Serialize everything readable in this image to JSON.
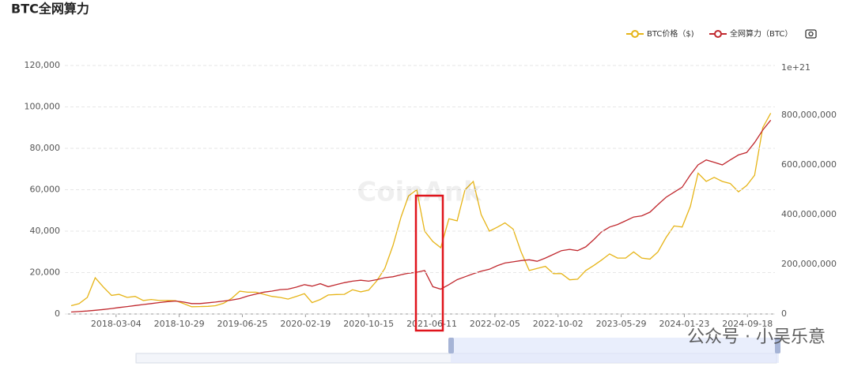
{
  "chart_data": {
    "type": "line",
    "title": "BTC全网算力",
    "watermark": "CoinAnk",
    "overlay_text": "公众号 · 小吴乐意",
    "y2_scale_label": "1e+21",
    "legend": "top-right",
    "grid": true,
    "x": [
      "2017-09-15",
      "2017-10-15",
      "2017-11-15",
      "2017-12-15",
      "2018-01-15",
      "2018-02-15",
      "2018-03-15",
      "2018-04-15",
      "2018-05-15",
      "2018-06-15",
      "2018-07-15",
      "2018-08-15",
      "2018-09-15",
      "2018-10-15",
      "2018-11-15",
      "2018-12-15",
      "2019-01-15",
      "2019-02-15",
      "2019-03-15",
      "2019-04-15",
      "2019-05-15",
      "2019-06-15",
      "2019-07-15",
      "2019-08-15",
      "2019-09-15",
      "2019-10-15",
      "2019-11-15",
      "2019-12-15",
      "2020-01-15",
      "2020-02-15",
      "2020-03-15",
      "2020-04-15",
      "2020-05-15",
      "2020-06-15",
      "2020-07-15",
      "2020-08-15",
      "2020-09-15",
      "2020-10-15",
      "2020-11-15",
      "2020-12-15",
      "2021-01-15",
      "2021-02-15",
      "2021-03-15",
      "2021-04-15",
      "2021-05-15",
      "2021-06-15",
      "2021-07-15",
      "2021-08-15",
      "2021-09-15",
      "2021-10-15",
      "2021-11-15",
      "2021-12-15",
      "2022-01-15",
      "2022-02-15",
      "2022-03-15",
      "2022-04-15",
      "2022-05-15",
      "2022-06-15",
      "2022-07-15",
      "2022-08-15",
      "2022-09-15",
      "2022-10-15",
      "2022-11-15",
      "2022-12-15",
      "2023-01-15",
      "2023-02-15",
      "2023-03-15",
      "2023-04-15",
      "2023-05-15",
      "2023-06-15",
      "2023-07-15",
      "2023-08-15",
      "2023-09-15",
      "2023-10-15",
      "2023-11-15",
      "2023-12-15",
      "2024-01-15",
      "2024-02-15",
      "2024-03-15",
      "2024-04-15",
      "2024-05-15",
      "2024-06-15",
      "2024-07-15",
      "2024-08-15",
      "2024-09-15",
      "2024-10-15",
      "2024-11-15",
      "2024-12-15"
    ],
    "series": [
      {
        "name": "BTC价格（$)",
        "color": "#e6b417",
        "values": [
          4000,
          5000,
          8000,
          17500,
          13000,
          9000,
          9500,
          8000,
          8500,
          6500,
          7000,
          6500,
          6500,
          6400,
          5000,
          3500,
          3600,
          3700,
          4000,
          5200,
          7500,
          11000,
          10500,
          10500,
          9500,
          8500,
          8000,
          7200,
          8500,
          9800,
          5500,
          7000,
          9200,
          9400,
          9500,
          11700,
          10700,
          11500,
          16000,
          22000,
          33000,
          47000,
          57000,
          60000,
          40000,
          35000,
          32000,
          46000,
          45000,
          60000,
          64000,
          48000,
          40000,
          42000,
          44000,
          41000,
          30000,
          21000,
          22000,
          23000,
          19500,
          19500,
          16500,
          16800,
          21000,
          23500,
          26000,
          29000,
          27000,
          27000,
          30000,
          27000,
          26500,
          30000,
          37000,
          42500,
          42000,
          52000,
          68000,
          64000,
          66000,
          64000,
          63000,
          59000,
          62000,
          67000,
          90000,
          97000
        ]
      },
      {
        "name": "全网算力（BTC）",
        "color": "#c0282e",
        "axis": "y2",
        "values": [
          8000000,
          10000000,
          12000000,
          15000000,
          18000000,
          22000000,
          26000000,
          30000000,
          34000000,
          38000000,
          42000000,
          46000000,
          50000000,
          52000000,
          48000000,
          42000000,
          42000000,
          45000000,
          48000000,
          52000000,
          56000000,
          62000000,
          72000000,
          80000000,
          88000000,
          92000000,
          98000000,
          100000000,
          108000000,
          118000000,
          112000000,
          122000000,
          110000000,
          118000000,
          126000000,
          132000000,
          136000000,
          132000000,
          138000000,
          146000000,
          150000000,
          158000000,
          164000000,
          168000000,
          175000000,
          110000000,
          100000000,
          118000000,
          138000000,
          150000000,
          162000000,
          172000000,
          180000000,
          195000000,
          205000000,
          210000000,
          215000000,
          218000000,
          212000000,
          225000000,
          240000000,
          255000000,
          260000000,
          255000000,
          270000000,
          300000000,
          330000000,
          350000000,
          360000000,
          375000000,
          390000000,
          395000000,
          410000000,
          440000000,
          470000000,
          490000000,
          510000000,
          560000000,
          600000000,
          620000000,
          610000000,
          600000000,
          620000000,
          640000000,
          650000000,
          690000000,
          740000000,
          780000000
        ]
      }
    ],
    "xlim": [
      "2017-08-22",
      "2024-12-31"
    ],
    "xticks": [
      "2018-03-04",
      "2018-10-29",
      "2019-06-25",
      "2020-02-19",
      "2020-10-15",
      "2021-06-11",
      "2022-02-05",
      "2022-10-02",
      "2023-05-29",
      "2024-01-23",
      "2024-09-18"
    ],
    "ylim": [
      0,
      120000
    ],
    "yticks": [
      0,
      {
        "value": 20000,
        "label": "20,000"
      },
      {
        "value": 40000,
        "label": "40,000"
      },
      {
        "value": 60000,
        "label": "60,000"
      },
      {
        "value": 80000,
        "label": "80,000"
      },
      {
        "value": 100000,
        "label": "100,000"
      },
      {
        "value": 120000,
        "label": "120,000"
      }
    ],
    "y2lim": [
      0,
      1000000000
    ],
    "y2ticks": [
      0,
      {
        "value": 200000000,
        "label": "200,000,000"
      },
      {
        "value": 400000000,
        "label": "400,000,000"
      },
      {
        "value": 600000000,
        "label": "600,000,000"
      },
      {
        "value": 800000000,
        "label": "800,000,000"
      }
    ]
  }
}
